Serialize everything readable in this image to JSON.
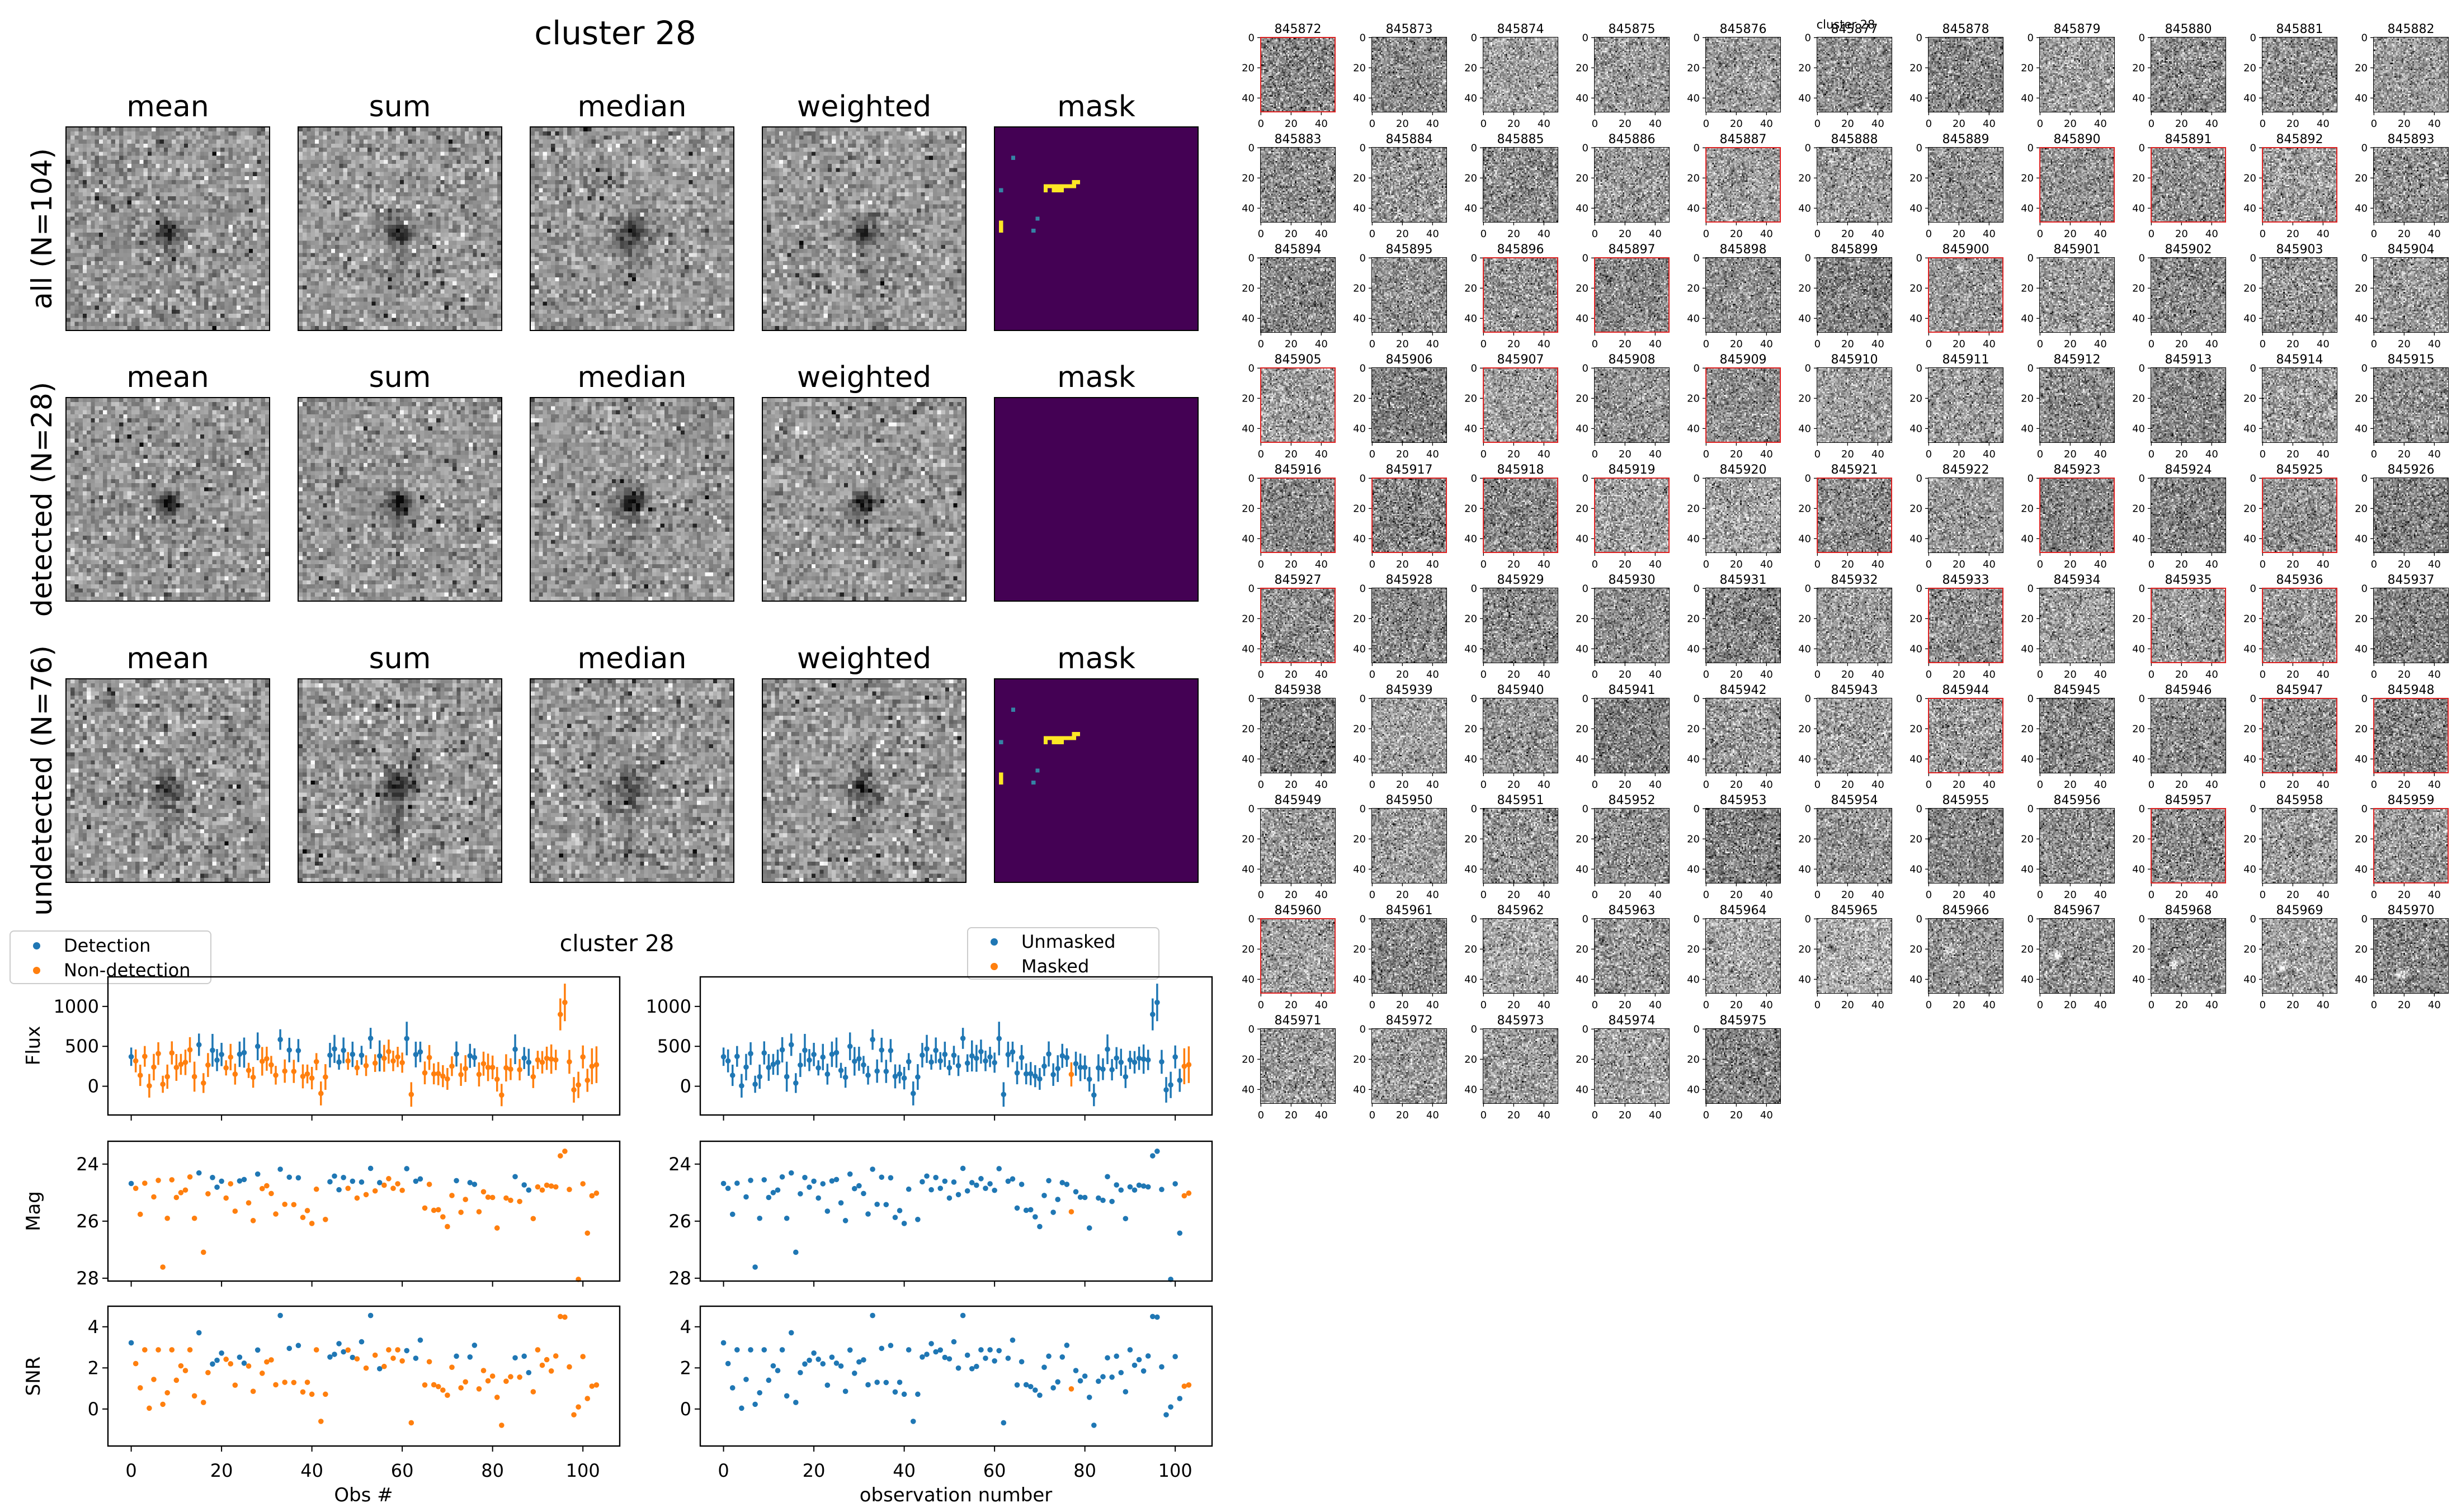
{
  "colors": {
    "detection": "#1f77b4",
    "non_detection": "#ff7f0e",
    "mask_background": "#440154",
    "mask_yellow": "#fde725",
    "mask_teal": "#3583a5",
    "red_border": "#dd2222",
    "spine": "#000000",
    "background": "#ffffff"
  },
  "stamp_fig": {
    "suptitle": "cluster 28",
    "col_headers": [
      "mean",
      "sum",
      "median",
      "weighted",
      "mask"
    ],
    "rows": [
      {
        "key": "all",
        "label": "all (N=104)"
      },
      {
        "key": "detected",
        "label": "detected (N=28)"
      },
      {
        "key": "undetected",
        "label": "undetected (N=76)"
      }
    ],
    "noise": {
      "rows": [
        {
          "sigma": 27,
          "blob": [
            24.5,
            25.4,
            2.2,
            105
          ],
          "streak": 24
        },
        {
          "sigma": 26,
          "blob": [
            24.5,
            25.4,
            2.0,
            135
          ],
          "streak": 15
        },
        {
          "sigma": 29,
          "blob": [
            24.3,
            25.6,
            2.6,
            82
          ],
          "streak": 34
        }
      ],
      "col_mods": [
        {
          "amp": 1.0,
          "sig": 1.0,
          "streak": 1.0
        },
        {
          "amp": 1.15,
          "sig": 1.0,
          "streak": 1.2
        },
        {
          "amp": 0.85,
          "sig": 1.3,
          "streak": 1.0
        },
        {
          "amp": 1.05,
          "sig": 0.95,
          "streak": 0.8
        }
      ]
    },
    "mask_pixels": {
      "yellow": [
        [
          19,
          13
        ],
        [
          20,
          13
        ],
        [
          12,
          14
        ],
        [
          13,
          14
        ],
        [
          14,
          14
        ],
        [
          15,
          14
        ],
        [
          16,
          14
        ],
        [
          17,
          14
        ],
        [
          18,
          14
        ],
        [
          19,
          14
        ],
        [
          12,
          15
        ],
        [
          14,
          15
        ],
        [
          15,
          15
        ],
        [
          16,
          15
        ],
        [
          1,
          23
        ],
        [
          1,
          24
        ],
        [
          1,
          25
        ]
      ],
      "teal": [
        [
          4,
          7
        ],
        [
          1,
          15
        ],
        [
          10,
          22
        ],
        [
          9,
          25
        ]
      ],
      "rows_with_marks": [
        0,
        2
      ]
    }
  },
  "scatter_fig": {
    "suptitle": "cluster 28",
    "legends": {
      "left": [
        "Detection",
        "Non-detection"
      ],
      "right": [
        "Unmasked",
        "Masked"
      ]
    },
    "xlabel_left": "Obs #",
    "xlabel_right": "observation number",
    "xticks": [
      0,
      20,
      40,
      60,
      80,
      100
    ],
    "xlim": [
      -5.15,
      108.15
    ],
    "panels": [
      {
        "ylabel": "Flux",
        "yticks": [
          0,
          500,
          1000
        ],
        "ylim": [
          -360,
          1370
        ],
        "type": "errorbar"
      },
      {
        "ylabel": "Mag",
        "yticks": [
          24,
          26,
          28
        ],
        "ylim": [
          28.1,
          23.2
        ],
        "type": "scatter"
      },
      {
        "ylabel": "SNR",
        "yticks": [
          0,
          2,
          4
        ],
        "ylim": [
          -1.8,
          5.0
        ],
        "type": "scatter"
      }
    ]
  },
  "chart_data": {
    "type": "scatter",
    "title": "cluster 28",
    "x": [
      0,
      1,
      2,
      3,
      4,
      5,
      6,
      7,
      8,
      9,
      10,
      11,
      12,
      13,
      14,
      15,
      16,
      17,
      18,
      19,
      20,
      21,
      22,
      23,
      24,
      25,
      26,
      27,
      28,
      29,
      30,
      31,
      32,
      33,
      34,
      35,
      36,
      37,
      38,
      39,
      40,
      41,
      42,
      43,
      44,
      45,
      46,
      47,
      48,
      49,
      50,
      51,
      52,
      53,
      54,
      55,
      56,
      57,
      58,
      59,
      60,
      61,
      62,
      63,
      64,
      65,
      66,
      67,
      68,
      69,
      70,
      71,
      72,
      73,
      74,
      75,
      76,
      77,
      78,
      79,
      80,
      81,
      82,
      83,
      84,
      85,
      86,
      87,
      88,
      89,
      90,
      91,
      92,
      93,
      94,
      95,
      96,
      97,
      98,
      99,
      100,
      101,
      102,
      103
    ],
    "series": [
      {
        "name": "Flux",
        "values": [
          370.0,
          317.5,
          137.0,
          374.2,
          6.0,
          239.5,
          409.2,
          25.0,
          120.0,
          417.5,
          235.4,
          274.3,
          299.5,
          456.4,
          120.2,
          520.0,
          40.0,
          265.8,
          450.3,
          327.4,
          397.9,
          230.2,
          365.2,
          151.7,
          400.7,
          421.3,
          198.5,
          111.9,
          500.0,
          312.3,
          344.7,
          267.9,
          138.0,
          585.0,
          189.7,
          453.4,
          186.3,
          446.4,
          123.8,
          153.7,
          101.7,
          308.0,
          -90.0,
          115.7,
          389.3,
          467.9,
          302.9,
          449.2,
          317.2,
          399.4,
          231.8,
          388.0,
          257.8,
          600.0,
          289.9,
          380.0,
          349.9,
          433.9,
          317.1,
          366.9,
          295.6,
          597.6,
          -102.9,
          397.4,
          430.2,
          167.5,
          360.1,
          155.1,
          158.3,
          126.4,
          91.6,
          251.4,
          404.0,
          145.9,
          221.1,
          380.8,
          359.3,
          148.5,
          282.4,
          236.7,
          236.3,
          87.5,
          -110.0,
          230.3,
          213.9,
          463.2,
          207.1,
          352.8,
          300.0,
          118.7,
          330.0,
          300.0,
          350.0,
          340.0,
          330.0,
          900.0,
          1050.0,
          306.0,
          -45.0,
          16.8,
          367.1,
          74.4,
          250.0,
          270.0
        ],
        "errors": [
          115.0,
          143.7,
          133.5,
          129.9,
          148.2,
          166.0,
          142.1,
          106.9,
          151.5,
          145.0,
          167.9,
          130.6,
          159.7,
          158.5,
          187.9,
          140.0,
          123.9,
          149.9,
          205.5,
          138.2,
          146.0,
          95.0,
          165.7,
          131.3,
          159.2,
          188.7,
          95.0,
          130.6,
          174.1,
          179.2,
          150.5,
          112.3,
          117.3,
          128.6,
          146.1,
          153.8,
          145.0,
          144.3,
          150.0,
          117.9,
          140.8,
          106.9,
          150.0,
          161.3,
          153.7,
          175.9,
          95.2,
          161.6,
          110.6,
          159.0,
          95.0,
          118.6,
          129.6,
          131.9,
          110.6,
          194.3,
          168.6,
          150.7,
          128.3,
          127.4,
          126.4,
          210.7,
          153.4,
          160.9,
          128.6,
          142.9,
          156.3,
          131.2,
          145.3,
          137.9,
          136.7,
          123.7,
          157.3,
          141.3,
          167.6,
          150.7,
          115.9,
          151.3,
          150.7,
          172.5,
          147.9,
          153.9,
          140.0,
          170.6,
          136.4,
          186.2,
          134.0,
          137.5,
          169.5,
          141.2,
          114.6,
          140.6,
          145.6,
          183.7,
          127.9,
          200.0,
          235.0,
          149.5,
          160.0,
          165.0,
          143.8,
          144.6,
          225.0,
          230.0
        ]
      },
      {
        "name": "Mag",
        "values": [
          24.68,
          24.85,
          25.76,
          24.67,
          null,
          25.15,
          24.57,
          27.61,
          25.9,
          24.55,
          25.17,
          25.0,
          24.91,
          24.45,
          25.9,
          24.31,
          27.09,
          25.04,
          24.47,
          24.81,
          24.6,
          25.19,
          24.69,
          25.65,
          24.59,
          24.54,
          25.36,
          25.98,
          24.35,
          24.86,
          24.76,
          25.03,
          25.75,
          24.18,
          25.41,
          24.46,
          25.42,
          24.48,
          25.87,
          25.63,
          26.08,
          24.88,
          null,
          25.94,
          24.62,
          24.42,
          24.9,
          24.47,
          24.85,
          24.6,
          25.19,
          24.63,
          25.07,
          24.15,
          24.94,
          24.65,
          24.74,
          24.51,
          24.85,
          24.69,
          24.92,
          24.16,
          null,
          24.6,
          24.52,
          25.54,
          24.71,
          25.62,
          25.6,
          25.85,
          26.19,
          25.1,
          24.58,
          25.69,
          25.24,
          24.65,
          24.71,
          25.67,
          24.97,
          25.16,
          25.17,
          26.24,
          null,
          25.19,
          25.27,
          24.44,
          25.31,
          24.73,
          24.91,
          25.91,
          24.8,
          24.91,
          24.74,
          24.77,
          24.8,
          23.71,
          23.55,
          24.89,
          null,
          28.04,
          24.69,
          26.42,
          25.11,
          25.02
        ]
      },
      {
        "name": "SNR",
        "values": [
          3.22,
          2.21,
          1.03,
          2.88,
          0.04,
          1.44,
          2.88,
          0.23,
          0.79,
          2.88,
          1.4,
          2.1,
          1.87,
          2.88,
          0.64,
          3.71,
          0.32,
          1.77,
          2.19,
          2.37,
          2.72,
          2.42,
          2.2,
          1.16,
          2.52,
          2.23,
          2.09,
          0.86,
          2.87,
          1.74,
          2.29,
          2.39,
          1.18,
          4.55,
          1.3,
          2.95,
          1.29,
          3.09,
          0.83,
          1.3,
          0.72,
          2.88,
          -0.6,
          0.72,
          2.53,
          2.66,
          3.18,
          2.78,
          2.87,
          2.51,
          2.44,
          3.27,
          1.99,
          4.55,
          2.62,
          1.96,
          2.07,
          2.88,
          2.47,
          2.88,
          2.34,
          2.84,
          -0.67,
          2.47,
          3.35,
          1.17,
          2.3,
          1.18,
          1.09,
          0.92,
          0.67,
          2.03,
          2.57,
          1.03,
          1.32,
          2.53,
          3.1,
          0.98,
          1.87,
          1.37,
          1.6,
          0.57,
          -0.79,
          1.35,
          1.57,
          2.49,
          1.55,
          2.57,
          1.77,
          0.84,
          2.88,
          2.13,
          2.4,
          1.85,
          2.58,
          4.5,
          4.47,
          2.05,
          -0.28,
          0.1,
          2.55,
          0.51,
          1.11,
          1.17
        ]
      }
    ],
    "detected_indices": [
      0,
      15,
      18,
      19,
      20,
      24,
      25,
      28,
      33,
      35,
      37,
      44,
      45,
      46,
      47,
      49,
      51,
      53,
      55,
      61,
      63,
      64,
      72,
      75,
      76,
      85,
      87,
      88
    ],
    "masked_indices": [
      77,
      102,
      103
    ],
    "legend_left": [
      "Detection",
      "Non-detection"
    ],
    "legend_right": [
      "Unmasked",
      "Masked"
    ],
    "xlabel": "observation number",
    "xlim": [
      -5.15,
      108.15
    ]
  },
  "thumb_fig": {
    "suptitle": "cluster 28",
    "ids": [
      845872,
      845873,
      845874,
      845875,
      845876,
      845877,
      845878,
      845879,
      845880,
      845881,
      845882,
      845883,
      845884,
      845885,
      845886,
      845887,
      845888,
      845889,
      845890,
      845891,
      845892,
      845893,
      845894,
      845895,
      845896,
      845897,
      845898,
      845899,
      845900,
      845901,
      845902,
      845903,
      845904,
      845905,
      845906,
      845907,
      845908,
      845909,
      845910,
      845911,
      845912,
      845913,
      845914,
      845915,
      845916,
      845917,
      845918,
      845919,
      845920,
      845921,
      845922,
      845923,
      845924,
      845925,
      845926,
      845927,
      845928,
      845929,
      845930,
      845931,
      845932,
      845933,
      845934,
      845935,
      845936,
      845937,
      845938,
      845939,
      845940,
      845941,
      845942,
      845943,
      845944,
      845945,
      845946,
      845947,
      845948,
      845949,
      845950,
      845951,
      845952,
      845953,
      845954,
      845955,
      845956,
      845957,
      845958,
      845959,
      845960,
      845961,
      845962,
      845963,
      845964,
      845965,
      845966,
      845967,
      845968,
      845969,
      845970,
      845971,
      845972,
      845973,
      845974,
      845975
    ],
    "red_ids": [
      845872,
      845887,
      845890,
      845891,
      845892,
      845896,
      845897,
      845900,
      845905,
      845907,
      845909,
      845916,
      845917,
      845918,
      845919,
      845921,
      845923,
      845925,
      845927,
      845933,
      845935,
      845936,
      845944,
      845947,
      845948,
      845957,
      845959,
      845960
    ],
    "xticks": [
      0,
      20,
      40
    ],
    "yticks": [
      0,
      20,
      40
    ],
    "specials": {
      "845887": {
        "off": 10
      },
      "845905": {
        "off": 12
      },
      "845906": {
        "off": -18
      },
      "845919": {
        "off": 14
      },
      "845920": {
        "off": 16
      },
      "845960": {
        "off": 10,
        "blobs": [
          [
            1,
            1,
            1.3,
            80
          ]
        ]
      },
      "845962": {
        "off": 18
      },
      "845963": {
        "blobs": [
          [
            5,
            14,
            1.6,
            85
          ],
          [
            7,
            9,
            1.2,
            -60
          ]
        ]
      },
      "845964": {
        "off": 18,
        "blobs": [
          [
            3,
            15,
            1.3,
            75
          ]
        ]
      },
      "845965": {
        "off": 26,
        "blobs": [
          [
            9,
            19,
            1.7,
            95
          ]
        ]
      },
      "845966": {
        "blobs": [
          [
            14,
            21,
            2.2,
            -55
          ]
        ]
      },
      "845967": {
        "blobs": [
          [
            11,
            24,
            1.9,
            -130
          ],
          [
            17,
            28,
            2.5,
            40
          ]
        ]
      },
      "845968": {
        "off": -8,
        "blobs": [
          [
            15,
            30,
            1.9,
            -130
          ],
          [
            8,
            27,
            2.2,
            45
          ]
        ]
      },
      "845969": {
        "blobs": [
          [
            13,
            33,
            1.6,
            -100
          ],
          [
            20,
            36,
            2.0,
            40
          ]
        ]
      },
      "845970": {
        "off": -10,
        "blobs": [
          [
            18,
            37,
            2.0,
            -140
          ],
          [
            24,
            41,
            2.2,
            50
          ]
        ]
      },
      "845972": {
        "off": 8
      },
      "845975": {
        "off": -14
      }
    }
  }
}
